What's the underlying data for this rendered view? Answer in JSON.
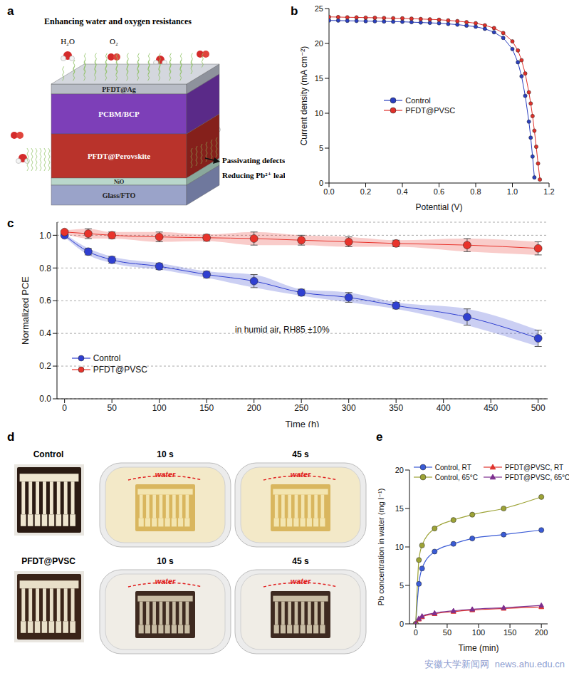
{
  "panel_a": {
    "panel_label": "a",
    "title": "Enhancing water and oxygen resistances",
    "molecules": [
      "H₂O",
      "O₂"
    ],
    "layers": [
      "PFDT@Ag",
      "PCBM/BCP",
      "PFDT@Perovskite",
      "NiO",
      "Glass/FTO"
    ],
    "annotations": [
      "Passivating defects",
      "Reducing Pb²⁺ leakage"
    ]
  },
  "chart_data": [
    {
      "panel_label": "b",
      "type": "line",
      "x_label": "Potential (V)",
      "y_label": "Current density (mA cm⁻²)",
      "xlim": [
        0,
        1.2
      ],
      "xticks": [
        {
          "value": 0,
          "label": "0.0"
        },
        {
          "value": 0.2,
          "label": "0.2"
        },
        {
          "value": 0.4,
          "label": "0.4"
        },
        {
          "value": 0.6,
          "label": "0.6"
        },
        {
          "value": 0.8,
          "label": "0.8"
        },
        {
          "value": 1,
          "label": "1.0"
        },
        {
          "value": 1.2,
          "label": "1.2"
        }
      ],
      "ylim": [
        0,
        25
      ],
      "yticks": [
        0,
        5,
        10,
        15,
        20,
        25
      ],
      "legend": "center",
      "series": [
        {
          "name": "Control",
          "color": "#2a3fbf",
          "marker": "circle",
          "line_style": "solid",
          "x": [
            0,
            0.05,
            0.1,
            0.15,
            0.2,
            0.25,
            0.3,
            0.35,
            0.4,
            0.45,
            0.5,
            0.55,
            0.6,
            0.65,
            0.7,
            0.75,
            0.8,
            0.85,
            0.9,
            0.95,
            1.0,
            1.03,
            1.05,
            1.07,
            1.09,
            1.1,
            1.11,
            1.12
          ],
          "values": [
            23.3,
            23.28,
            23.25,
            23.23,
            23.2,
            23.18,
            23.15,
            23.12,
            23.1,
            23.05,
            23.0,
            22.95,
            22.9,
            22.8,
            22.7,
            22.55,
            22.4,
            22.1,
            21.6,
            20.8,
            19.2,
            17.3,
            15.3,
            12.5,
            8.8,
            6.5,
            3.8,
            0.8
          ]
        },
        {
          "name": "PFDT@PVSC",
          "color": "#e0302a",
          "marker": "circle",
          "line_style": "solid",
          "x": [
            0,
            0.05,
            0.1,
            0.15,
            0.2,
            0.25,
            0.3,
            0.35,
            0.4,
            0.45,
            0.5,
            0.55,
            0.6,
            0.65,
            0.7,
            0.75,
            0.8,
            0.85,
            0.9,
            0.95,
            1.0,
            1.03,
            1.05,
            1.07,
            1.09,
            1.1,
            1.11,
            1.12,
            1.13,
            1.14,
            1.15
          ],
          "values": [
            23.8,
            23.78,
            23.75,
            23.73,
            23.7,
            23.68,
            23.65,
            23.62,
            23.6,
            23.55,
            23.5,
            23.45,
            23.4,
            23.3,
            23.2,
            23.05,
            22.9,
            22.6,
            22.2,
            21.5,
            20.3,
            19.0,
            17.6,
            15.7,
            13.0,
            11.4,
            9.6,
            7.5,
            5.2,
            2.8,
            0.5
          ]
        }
      ]
    },
    {
      "panel_label": "c",
      "type": "line",
      "x_label": "Time (h)",
      "y_label": "Normalized PCE",
      "annotation": "in humid air, RH85 ±10%",
      "xlim": [
        -8,
        510
      ],
      "xticks": [
        0,
        50,
        100,
        150,
        200,
        250,
        300,
        350,
        400,
        450,
        500
      ],
      "ylim": [
        0,
        1.08
      ],
      "yticks": [
        {
          "value": 0,
          "label": "0.0"
        },
        {
          "value": 0.2,
          "label": "0.2"
        },
        {
          "value": 0.4,
          "label": "0.4"
        },
        {
          "value": 0.6,
          "label": "0.6"
        },
        {
          "value": 0.8,
          "label": "0.8"
        },
        {
          "value": 1,
          "label": "1.0"
        }
      ],
      "grid": true,
      "legend": "lower left",
      "x": [
        0,
        25,
        50,
        100,
        150,
        200,
        250,
        300,
        350,
        425,
        500
      ],
      "series": [
        {
          "name": "Control",
          "color": "#2f3fd0",
          "marker": "circle",
          "line_style": "solid",
          "values": [
            1.0,
            0.9,
            0.85,
            0.81,
            0.76,
            0.72,
            0.65,
            0.62,
            0.57,
            0.5,
            0.37
          ],
          "errors": [
            0.01,
            0.02,
            0.02,
            0.02,
            0.02,
            0.04,
            0.02,
            0.03,
            0.02,
            0.05,
            0.05
          ]
        },
        {
          "name": "PFDT@PVSC",
          "color": "#e8332b",
          "marker": "circle",
          "line_style": "solid",
          "values": [
            1.02,
            1.01,
            1.0,
            0.99,
            0.985,
            0.98,
            0.97,
            0.96,
            0.95,
            0.94,
            0.92
          ],
          "errors": [
            0.01,
            0.03,
            0.02,
            0.03,
            0.02,
            0.04,
            0.03,
            0.03,
            0.02,
            0.04,
            0.04
          ]
        }
      ]
    },
    {
      "panel_label": "e",
      "type": "line",
      "x_label": "Time (min)",
      "y_label": "Pb concentration in water (mg l⁻¹)",
      "xlim": [
        -10,
        210
      ],
      "xticks": [
        0,
        50,
        100,
        150,
        200
      ],
      "ylim": [
        0,
        20
      ],
      "yticks": [
        0,
        5,
        10,
        15,
        20
      ],
      "legend": "upper left",
      "x": [
        0,
        5,
        10,
        30,
        60,
        90,
        140,
        200
      ],
      "series": [
        {
          "name": "Control, RT",
          "color": "#3a5bd6",
          "marker": "circle",
          "line_style": "solid",
          "values": [
            0,
            5.2,
            7.2,
            9.4,
            10.4,
            11.1,
            11.6,
            12.2
          ]
        },
        {
          "name": "Control, 65°C",
          "color": "#9da336",
          "marker": "circle",
          "line_style": "solid",
          "values": [
            0,
            8.3,
            10.2,
            12.4,
            13.5,
            14.2,
            15.0,
            16.5
          ]
        },
        {
          "name": "PFDT@PVSC, RT",
          "color": "#e0342d",
          "marker": "triangle",
          "line_style": "solid",
          "values": [
            0,
            0.6,
            0.9,
            1.3,
            1.6,
            1.8,
            2.0,
            2.2
          ]
        },
        {
          "name": "PFDT@PVSC, 65°C",
          "color": "#7d2f8f",
          "marker": "triangle",
          "line_style": "solid",
          "values": [
            0,
            0.7,
            1.0,
            1.4,
            1.7,
            1.9,
            2.1,
            2.4
          ]
        }
      ]
    }
  ],
  "panel_d": {
    "panel_label": "d",
    "rows": [
      {
        "sample": "Control",
        "times": [
          "10 s",
          "45 s"
        ],
        "water_label": "water"
      },
      {
        "sample": "PFDT@PVSC",
        "times": [
          "10 s",
          "45 s"
        ],
        "water_label": "water"
      }
    ]
  },
  "watermark": [
    "安徽大学新闻网",
    "news.ahu.edu.cn"
  ]
}
